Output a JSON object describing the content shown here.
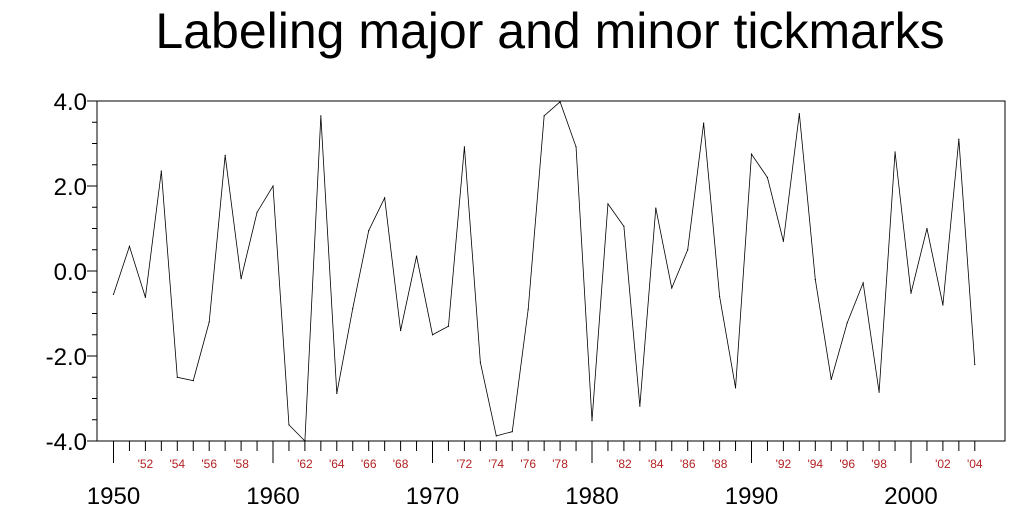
{
  "chart_data": {
    "type": "line",
    "title": "Labeling major and minor tickmarks",
    "xlabel": "",
    "ylabel": "",
    "xlim": [
      1950,
      2004
    ],
    "ylim": [
      -4.0,
      4.0
    ],
    "y_ticks": [
      "4.0",
      "2.0",
      "0.0",
      "-2.0",
      "-4.0"
    ],
    "y_tick_values": [
      4,
      2,
      0,
      -2,
      -4
    ],
    "x_major_ticks": [
      {
        "year": 1950,
        "label": "1950"
      },
      {
        "year": 1960,
        "label": "1960"
      },
      {
        "year": 1970,
        "label": "1970"
      },
      {
        "year": 1980,
        "label": "1980"
      },
      {
        "year": 1990,
        "label": "1990"
      },
      {
        "year": 2000,
        "label": "2000"
      }
    ],
    "x_minor_labels": [
      {
        "year": 1952,
        "label": "'52"
      },
      {
        "year": 1954,
        "label": "'54"
      },
      {
        "year": 1956,
        "label": "'56"
      },
      {
        "year": 1958,
        "label": "'58"
      },
      {
        "year": 1962,
        "label": "'62"
      },
      {
        "year": 1964,
        "label": "'64"
      },
      {
        "year": 1966,
        "label": "'66"
      },
      {
        "year": 1968,
        "label": "'68"
      },
      {
        "year": 1972,
        "label": "'72"
      },
      {
        "year": 1974,
        "label": "'74"
      },
      {
        "year": 1976,
        "label": "'76"
      },
      {
        "year": 1978,
        "label": "'78"
      },
      {
        "year": 1982,
        "label": "'82"
      },
      {
        "year": 1984,
        "label": "'84"
      },
      {
        "year": 1986,
        "label": "'86"
      },
      {
        "year": 1988,
        "label": "'88"
      },
      {
        "year": 1992,
        "label": "'92"
      },
      {
        "year": 1994,
        "label": "'94"
      },
      {
        "year": 1996,
        "label": "'96"
      },
      {
        "year": 1998,
        "label": "'98"
      },
      {
        "year": 2002,
        "label": "'02"
      },
      {
        "year": 2004,
        "label": "'04"
      }
    ],
    "minor_label_color": "#b22222",
    "line_color": "#000000",
    "grid": false,
    "x": [
      1950,
      1951,
      1952,
      1953,
      1954,
      1955,
      1956,
      1957,
      1958,
      1959,
      1960,
      1961,
      1962,
      1963,
      1964,
      1965,
      1966,
      1967,
      1968,
      1969,
      1970,
      1971,
      1972,
      1973,
      1974,
      1975,
      1976,
      1977,
      1978,
      1979,
      1980,
      1981,
      1982,
      1983,
      1984,
      1985,
      1986,
      1987,
      1988,
      1989,
      1990,
      1991,
      1992,
      1993,
      1994,
      1995,
      1996,
      1997,
      1998,
      1999,
      2000,
      2001,
      2002,
      2003,
      2004
    ],
    "y": [
      -0.55,
      0.58,
      -0.62,
      2.35,
      -2.5,
      -2.58,
      -1.2,
      2.72,
      -0.18,
      1.38,
      2.0,
      -3.62,
      -4.0,
      3.65,
      -2.88,
      -0.88,
      0.95,
      1.72,
      -1.4,
      0.35,
      -1.5,
      -1.3,
      2.92,
      -2.15,
      -3.88,
      -3.78,
      -0.9,
      3.65,
      3.98,
      2.92,
      -3.52,
      1.58,
      1.05,
      -3.18,
      1.48,
      -0.4,
      0.5,
      3.48,
      -0.6,
      -2.75,
      2.75,
      2.2,
      0.7,
      3.7,
      -0.2,
      -2.55,
      -1.22,
      -0.28,
      -2.85,
      2.8,
      -0.52,
      1.0,
      -0.8,
      3.1,
      -2.2
    ]
  }
}
